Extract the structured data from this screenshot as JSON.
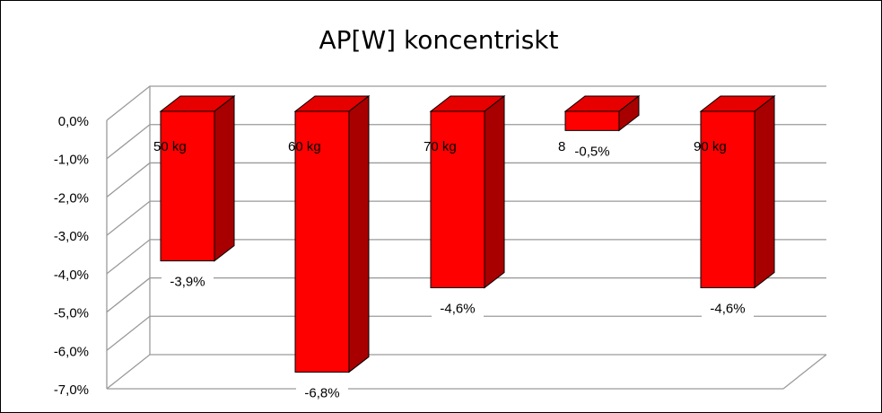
{
  "chart_data": {
    "type": "bar",
    "title": "AP[W] koncentriskt",
    "categories": [
      "50 kg",
      "60 kg",
      "70 kg",
      "80 kg",
      "90 kg"
    ],
    "series": [
      {
        "values": [
          -3.9,
          -6.8,
          -4.6,
          -0.5,
          -4.6
        ]
      }
    ],
    "data_labels": [
      "-3,9%",
      "-6,8%",
      "-4,6%",
      "-0,5%",
      "-4,6%"
    ],
    "y_tick_labels": [
      "0,0%",
      "-1,0%",
      "-2,0%",
      "-3,0%",
      "-4,0%",
      "-5,0%",
      "-6,0%",
      "-7,0%"
    ],
    "ylim": [
      -7,
      0
    ],
    "xlabel": "",
    "ylabel": "",
    "grid": true,
    "legend": "none",
    "three_d": true,
    "colors": {
      "bar_front": "#ff0000",
      "bar_side": "#a80000",
      "bar_top": "#e60000",
      "outline": "#000000",
      "grid": "#9a9a9a",
      "wall": "#ffffff"
    }
  }
}
